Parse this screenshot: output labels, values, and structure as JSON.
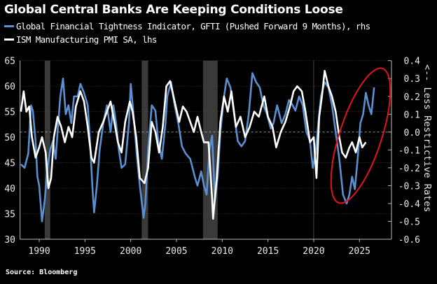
{
  "chart_data": {
    "type": "line",
    "title": "Global Central Banks Are Keeping Conditions Loose",
    "source": "Source: Bloomberg",
    "right_axis_label": "<-- Less Restrictive Rates",
    "xlim": [
      1987.9,
      2028.5
    ],
    "x_ticks": [
      "1990",
      "1995",
      "2000",
      "2005",
      "2010",
      "2015",
      "2020",
      "2025"
    ],
    "y_left": {
      "lim": [
        30,
        65
      ],
      "ticks": [
        "65",
        "60",
        "55",
        "50",
        "45",
        "40",
        "35",
        "30"
      ]
    },
    "y_right": {
      "lim": [
        -0.6,
        0.4
      ],
      "ticks": [
        "0.4",
        "0.3",
        "0.2",
        "0.1",
        "0.0",
        "-0.1",
        "-0.2",
        "-0.3",
        "-0.4",
        "-0.5",
        "-0.6"
      ]
    },
    "recessions": [
      [
        1990.6,
        1991.2
      ],
      [
        2001.2,
        2001.9
      ],
      [
        2007.9,
        2009.5
      ]
    ],
    "series": [
      {
        "name": "Global Financial Tightness Indicator, GFTI (Pushed Forward 9 Months), rhs",
        "axis": "right",
        "color": "#5b8fd0",
        "points": [
          [
            1988.0,
            -0.18
          ],
          [
            1988.4,
            -0.2
          ],
          [
            1988.8,
            -0.12
          ],
          [
            1989.1,
            0.15
          ],
          [
            1989.3,
            0.12
          ],
          [
            1989.6,
            -0.05
          ],
          [
            1989.8,
            -0.25
          ],
          [
            1990.0,
            -0.3
          ],
          [
            1990.3,
            -0.5
          ],
          [
            1990.6,
            -0.38
          ],
          [
            1990.9,
            -0.2
          ],
          [
            1991.2,
            -0.1
          ],
          [
            1991.5,
            -0.05
          ],
          [
            1991.8,
            -0.15
          ],
          [
            1992.0,
            0.0
          ],
          [
            1992.3,
            0.2
          ],
          [
            1992.6,
            0.3
          ],
          [
            1992.9,
            0.1
          ],
          [
            1993.2,
            0.15
          ],
          [
            1993.5,
            0.05
          ],
          [
            1993.8,
            0.2
          ],
          [
            1994.2,
            0.2
          ],
          [
            1994.5,
            0.27
          ],
          [
            1994.9,
            0.22
          ],
          [
            1995.3,
            0.15
          ],
          [
            1995.6,
            -0.1
          ],
          [
            1995.8,
            -0.3
          ],
          [
            1996.0,
            -0.45
          ],
          [
            1996.3,
            -0.3
          ],
          [
            1996.6,
            -0.1
          ],
          [
            1997.0,
            0.05
          ],
          [
            1997.4,
            0.15
          ],
          [
            1997.8,
            0.0
          ],
          [
            1998.1,
            0.15
          ],
          [
            1998.4,
            0.05
          ],
          [
            1998.7,
            -0.1
          ],
          [
            1999.0,
            -0.2
          ],
          [
            1999.4,
            -0.18
          ],
          [
            1999.8,
            0.05
          ],
          [
            2000.0,
            0.27
          ],
          [
            2000.3,
            0.1
          ],
          [
            2000.7,
            -0.15
          ],
          [
            2001.0,
            -0.3
          ],
          [
            2001.4,
            -0.48
          ],
          [
            2001.6,
            -0.4
          ],
          [
            2001.9,
            -0.1
          ],
          [
            2002.3,
            0.15
          ],
          [
            2002.7,
            0.12
          ],
          [
            2003.0,
            -0.05
          ],
          [
            2003.4,
            -0.15
          ],
          [
            2003.8,
            0.05
          ],
          [
            2004.0,
            0.2
          ],
          [
            2004.4,
            0.28
          ],
          [
            2004.8,
            0.15
          ],
          [
            2005.2,
            0.05
          ],
          [
            2005.6,
            -0.08
          ],
          [
            2006.0,
            -0.12
          ],
          [
            2006.5,
            -0.15
          ],
          [
            2007.0,
            -0.25
          ],
          [
            2007.3,
            -0.3
          ],
          [
            2007.7,
            -0.22
          ],
          [
            2008.0,
            -0.3
          ],
          [
            2008.3,
            -0.35
          ],
          [
            2008.6,
            -0.1
          ],
          [
            2008.9,
            -0.02
          ],
          [
            2009.2,
            -0.38
          ],
          [
            2009.5,
            -0.25
          ],
          [
            2009.8,
            0.0
          ],
          [
            2010.2,
            0.2
          ],
          [
            2010.5,
            0.3
          ],
          [
            2010.9,
            0.25
          ],
          [
            2011.3,
            0.1
          ],
          [
            2011.7,
            -0.05
          ],
          [
            2012.1,
            -0.08
          ],
          [
            2012.5,
            -0.05
          ],
          [
            2012.9,
            0.1
          ],
          [
            2013.3,
            0.33
          ],
          [
            2013.7,
            0.28
          ],
          [
            2014.1,
            0.25
          ],
          [
            2014.5,
            0.15
          ],
          [
            2014.9,
            0.1
          ],
          [
            2015.3,
            0.02
          ],
          [
            2015.6,
            0.05
          ],
          [
            2016.0,
            0.15
          ],
          [
            2016.5,
            0.05
          ],
          [
            2016.9,
            0.1
          ],
          [
            2017.3,
            0.18
          ],
          [
            2017.7,
            0.15
          ],
          [
            2018.0,
            0.12
          ],
          [
            2018.4,
            0.2
          ],
          [
            2018.8,
            0.15
          ],
          [
            2019.2,
            0.0
          ],
          [
            2019.6,
            -0.05
          ],
          [
            2019.9,
            -0.2
          ],
          [
            2020.2,
            -0.12
          ],
          [
            2020.5,
            0.05
          ],
          [
            2020.8,
            0.2
          ],
          [
            2021.2,
            0.28
          ],
          [
            2021.6,
            0.25
          ],
          [
            2022.0,
            0.15
          ],
          [
            2022.4,
            0.0
          ],
          [
            2022.8,
            -0.15
          ],
          [
            2023.2,
            -0.35
          ],
          [
            2023.6,
            -0.4
          ],
          [
            2023.9,
            -0.35
          ],
          [
            2024.2,
            -0.25
          ],
          [
            2024.5,
            -0.32
          ],
          [
            2024.8,
            -0.15
          ],
          [
            2025.1,
            0.05
          ],
          [
            2025.4,
            0.1
          ],
          [
            2025.7,
            0.22
          ],
          [
            2026.0,
            0.15
          ],
          [
            2026.3,
            0.1
          ],
          [
            2026.6,
            0.25
          ]
        ]
      },
      {
        "name": "ISM Manufacturing PMI SA, lhs",
        "axis": "left",
        "color": "#ffffff",
        "points": [
          [
            1988.0,
            55
          ],
          [
            1988.3,
            59
          ],
          [
            1988.6,
            55
          ],
          [
            1988.9,
            56
          ],
          [
            1989.2,
            50
          ],
          [
            1989.6,
            46
          ],
          [
            1990.0,
            48
          ],
          [
            1990.3,
            50
          ],
          [
            1990.7,
            47
          ],
          [
            1991.0,
            40
          ],
          [
            1991.3,
            42
          ],
          [
            1991.6,
            50
          ],
          [
            1992.0,
            54
          ],
          [
            1992.4,
            52
          ],
          [
            1992.8,
            49
          ],
          [
            1993.2,
            52
          ],
          [
            1993.6,
            50
          ],
          [
            1994.0,
            56
          ],
          [
            1994.5,
            59
          ],
          [
            1994.9,
            57
          ],
          [
            1995.3,
            52
          ],
          [
            1995.7,
            46
          ],
          [
            1996.0,
            45
          ],
          [
            1996.5,
            51
          ],
          [
            1997.0,
            53
          ],
          [
            1997.4,
            55
          ],
          [
            1997.8,
            57
          ],
          [
            1998.2,
            53
          ],
          [
            1998.6,
            49
          ],
          [
            1999.0,
            47
          ],
          [
            1999.4,
            53
          ],
          [
            1999.9,
            57
          ],
          [
            2000.2,
            55
          ],
          [
            2000.6,
            50
          ],
          [
            2001.0,
            42
          ],
          [
            2001.5,
            41
          ],
          [
            2001.9,
            44
          ],
          [
            2002.3,
            53
          ],
          [
            2002.7,
            51
          ],
          [
            2003.1,
            47
          ],
          [
            2003.5,
            52
          ],
          [
            2003.9,
            60
          ],
          [
            2004.3,
            61
          ],
          [
            2004.8,
            57
          ],
          [
            2005.3,
            53
          ],
          [
            2005.7,
            56
          ],
          [
            2006.1,
            55
          ],
          [
            2006.5,
            53
          ],
          [
            2006.9,
            51
          ],
          [
            2007.3,
            54
          ],
          [
            2007.7,
            51
          ],
          [
            2008.0,
            49
          ],
          [
            2008.5,
            49
          ],
          [
            2008.9,
            38
          ],
          [
            2009.0,
            34
          ],
          [
            2009.4,
            42
          ],
          [
            2009.8,
            53
          ],
          [
            2010.2,
            58
          ],
          [
            2010.6,
            55
          ],
          [
            2011.0,
            59
          ],
          [
            2011.5,
            52
          ],
          [
            2012.0,
            54
          ],
          [
            2012.5,
            50
          ],
          [
            2013.0,
            52
          ],
          [
            2013.5,
            55
          ],
          [
            2014.0,
            54
          ],
          [
            2014.6,
            58
          ],
          [
            2015.0,
            54
          ],
          [
            2015.5,
            52
          ],
          [
            2015.9,
            48
          ],
          [
            2016.4,
            51
          ],
          [
            2016.9,
            53
          ],
          [
            2017.4,
            56
          ],
          [
            2017.8,
            59
          ],
          [
            2018.2,
            60
          ],
          [
            2018.7,
            59
          ],
          [
            2019.1,
            55
          ],
          [
            2019.6,
            49
          ],
          [
            2020.0,
            50
          ],
          [
            2020.3,
            42
          ],
          [
            2020.6,
            54
          ],
          [
            2020.9,
            58
          ],
          [
            2021.2,
            63
          ],
          [
            2021.6,
            60
          ],
          [
            2022.0,
            58
          ],
          [
            2022.4,
            55
          ],
          [
            2022.8,
            50
          ],
          [
            2023.1,
            47
          ],
          [
            2023.5,
            46
          ],
          [
            2023.9,
            48
          ],
          [
            2024.2,
            49
          ],
          [
            2024.6,
            47
          ],
          [
            2025.0,
            50
          ],
          [
            2025.3,
            48
          ],
          [
            2025.7,
            49
          ]
        ]
      }
    ],
    "annotation": {
      "type": "ellipse",
      "color": "#e0141e",
      "label": "highlight of recent divergence"
    }
  }
}
